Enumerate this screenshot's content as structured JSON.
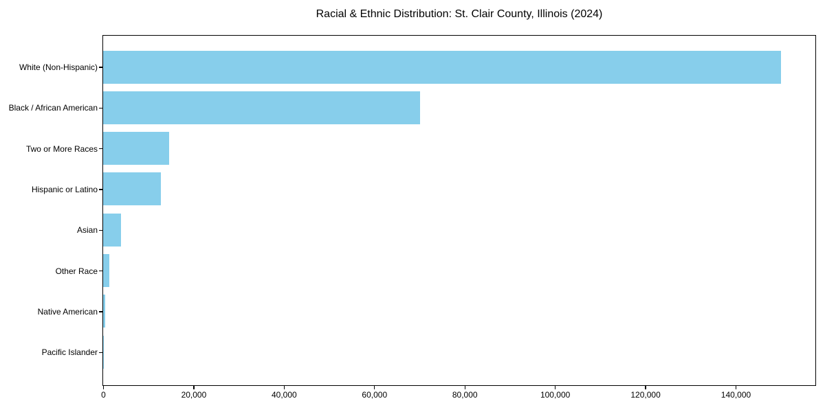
{
  "chart_data": {
    "type": "bar",
    "orientation": "horizontal",
    "title": "Racial & Ethnic Distribution: St. Clair County, Illinois (2024)",
    "categories": [
      "White (Non-Hispanic)",
      "Black / African American",
      "Two or More Races",
      "Hispanic or Latino",
      "Asian",
      "Other Race",
      "Native American",
      "Pacific Islander"
    ],
    "values": [
      150000,
      70200,
      14600,
      12800,
      4000,
      1300,
      400,
      100
    ],
    "xlabel": "",
    "ylabel": "",
    "xlim": [
      0,
      157500
    ],
    "x_ticks": [
      0,
      20000,
      40000,
      60000,
      80000,
      100000,
      120000,
      140000
    ],
    "x_tick_labels": [
      "0",
      "20,000",
      "40,000",
      "60,000",
      "80,000",
      "100,000",
      "120,000",
      "140,000"
    ],
    "grid": false,
    "legend_position": "none",
    "bar_color": "#87CEEB",
    "background_color": "#FFFFFF",
    "frame_color": "#000000",
    "text_color": "#000000"
  }
}
